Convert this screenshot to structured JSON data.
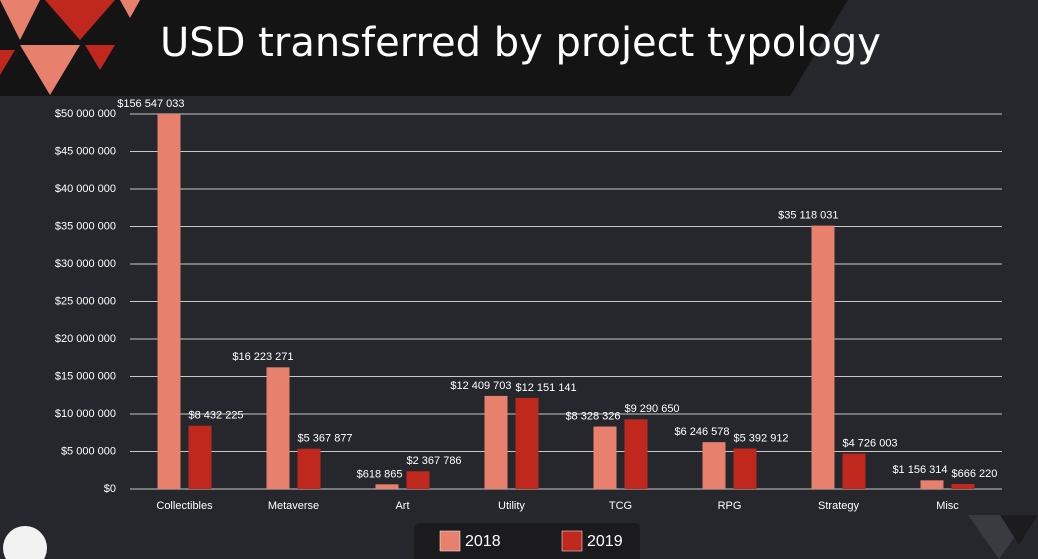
{
  "chart_data": {
    "type": "bar",
    "title": "USD transferred by project typology",
    "categories": [
      "Collectibles",
      "Metaverse",
      "Art",
      "Utility",
      "TCG",
      "RPG",
      "Strategy",
      "Misc"
    ],
    "series": [
      {
        "name": "2018",
        "color": "#e8806e",
        "values": [
          156547033,
          16223271,
          618865,
          12409703,
          8328326,
          6246578,
          35118031,
          1156314
        ],
        "value_labels": [
          "$156 547 033",
          "$16 223 271",
          "$618 865",
          "$12 409 703",
          "$8 328 326",
          "$6 246 578",
          "$35 118 031",
          "$1 156 314"
        ]
      },
      {
        "name": "2019",
        "color": "#c0281e",
        "values": [
          8432225,
          5367877,
          2367786,
          12151141,
          9290650,
          5392912,
          4726003,
          666220
        ],
        "value_labels": [
          "$8 432 225",
          "$5 367 877",
          "$2 367 786",
          "$12 151 141",
          "$9 290 650",
          "$5 392 912",
          "$4 726 003",
          "$666 220"
        ]
      }
    ],
    "ylim": [
      0,
      50000000
    ],
    "yticks": [
      {
        "value": 0,
        "label": "$0"
      },
      {
        "value": 5000000,
        "label": "$5 000 000"
      },
      {
        "value": 10000000,
        "label": "$10 000 000"
      },
      {
        "value": 15000000,
        "label": "$15 000 000"
      },
      {
        "value": 20000000,
        "label": "$20 000 000"
      },
      {
        "value": 25000000,
        "label": "$25 000 000"
      },
      {
        "value": 30000000,
        "label": "$30 000 000"
      },
      {
        "value": 35000000,
        "label": "$35 000 000"
      },
      {
        "value": 40000000,
        "label": "$40 000 000"
      },
      {
        "value": 45000000,
        "label": "$45 000 000"
      },
      {
        "value": 50000000,
        "label": "$50 000 000"
      }
    ],
    "grid": true
  }
}
